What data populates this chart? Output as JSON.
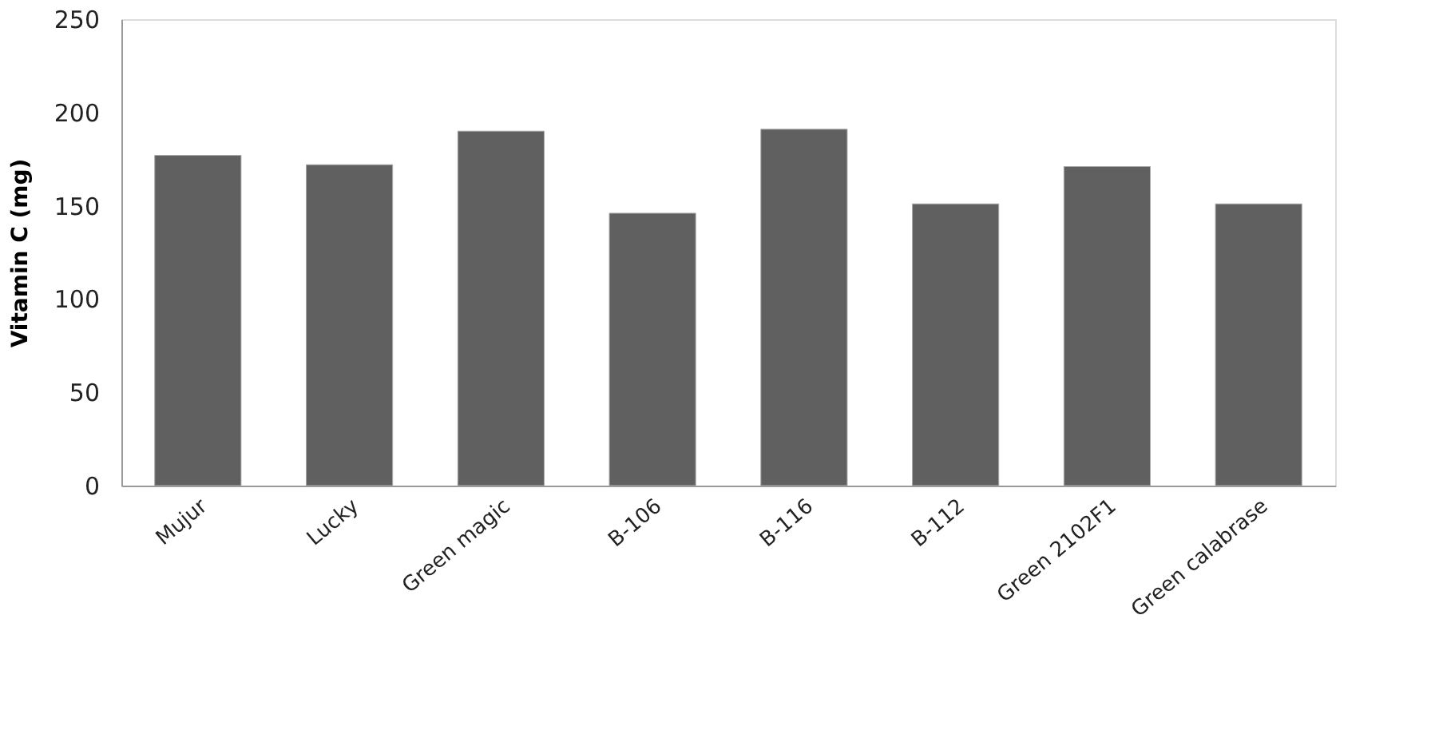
{
  "chart_data": {
    "type": "bar",
    "ylabel": "Vitamin C (mg)",
    "categories": [
      "Mujur",
      "Lucky",
      "Green magic",
      "B-106",
      "B-116",
      "B-112",
      "Green 2102F1",
      "Green calabrase"
    ],
    "values": [
      177,
      172,
      190,
      146,
      191,
      151,
      171,
      151
    ],
    "color": "#606060",
    "ylim": [
      0,
      250
    ],
    "yticks": [
      0,
      50,
      100,
      150,
      200,
      250
    ],
    "grid": false
  }
}
